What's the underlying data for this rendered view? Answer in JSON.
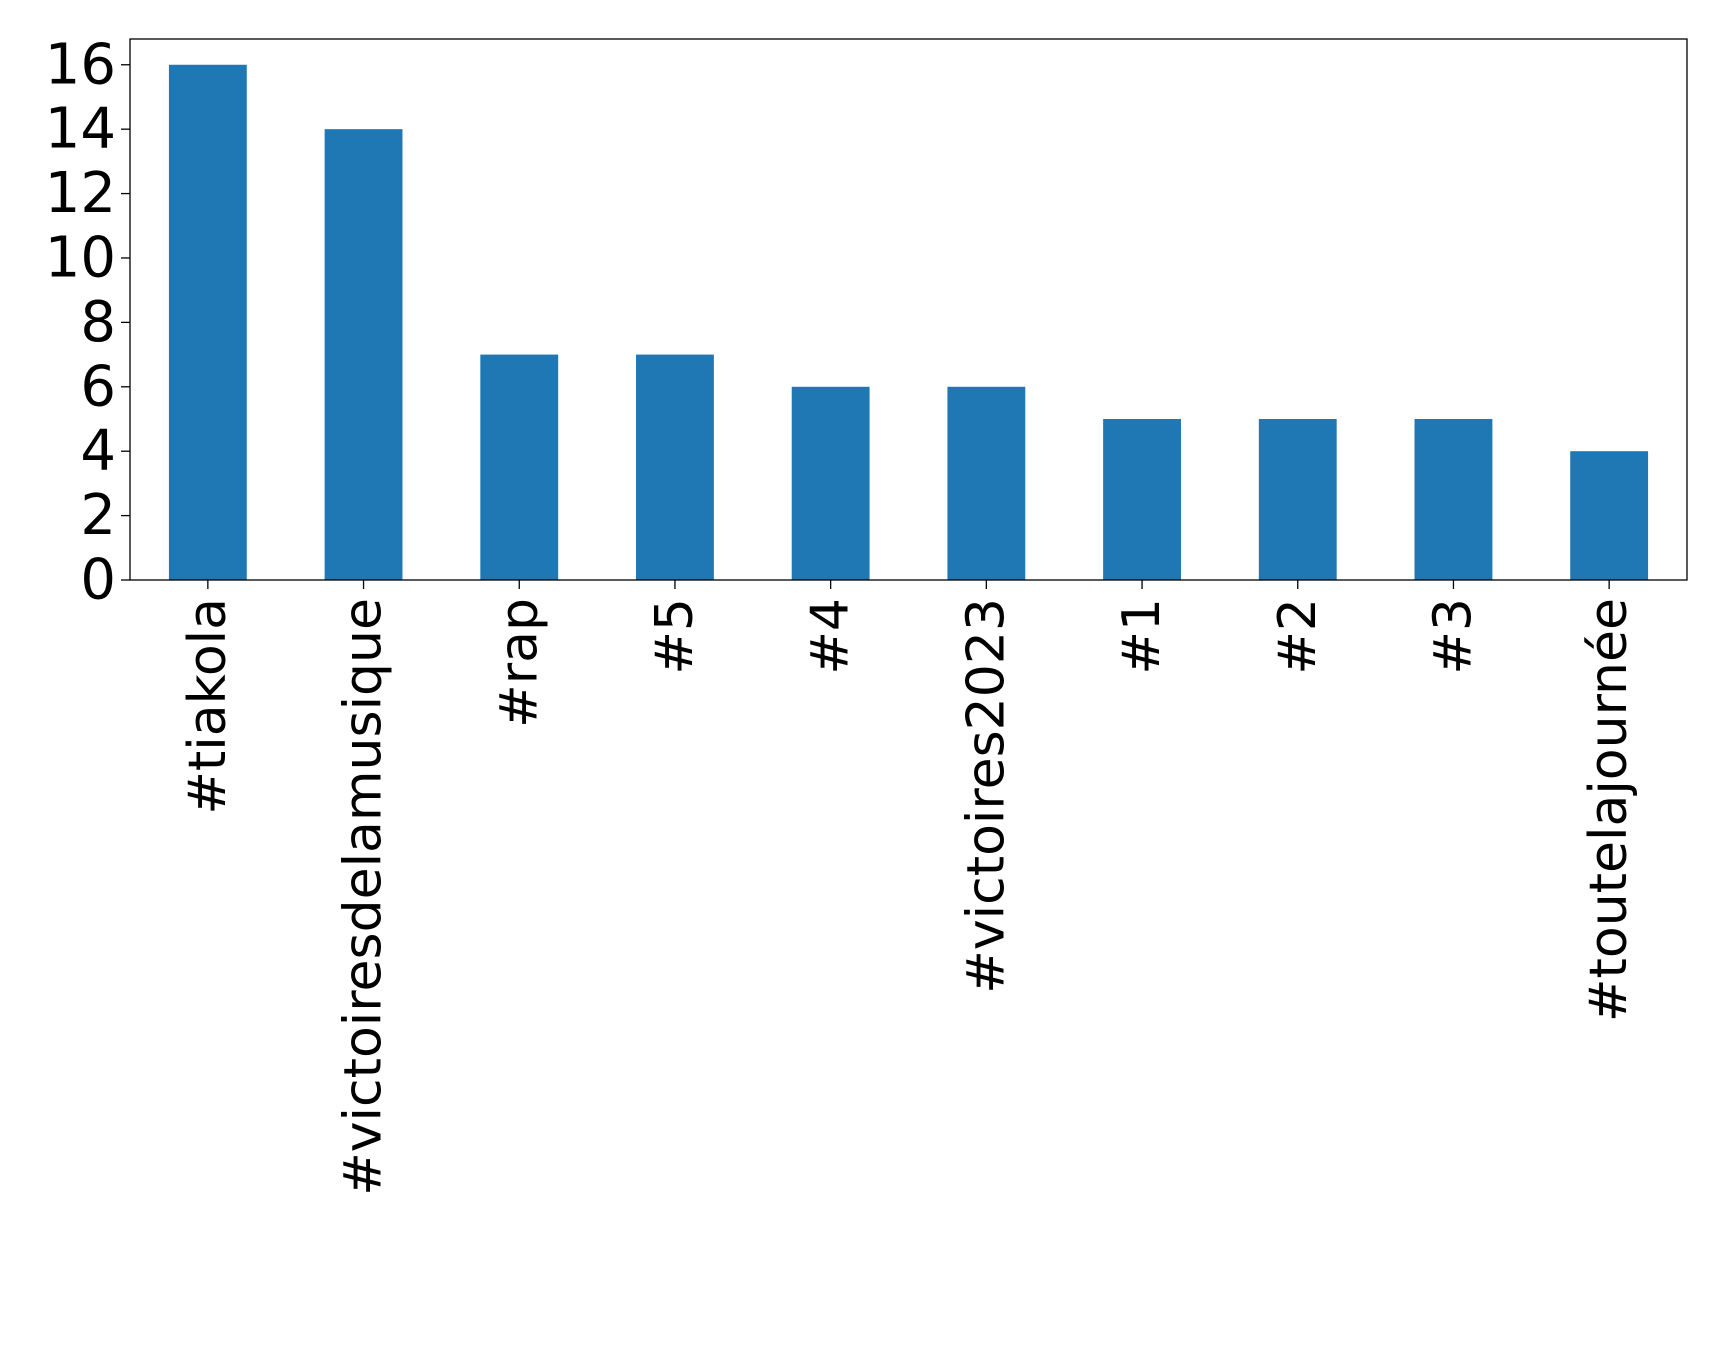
{
  "chart_data": {
    "type": "bar",
    "title": "",
    "xlabel": "",
    "ylabel": "",
    "categories": [
      "#tiakola",
      "#victoiresdelamusique",
      "#rap",
      "#5",
      "#4",
      "#victoires2023",
      "#1",
      "#2",
      "#3",
      "#toutelajournée"
    ],
    "values": [
      16,
      14,
      7,
      7,
      6,
      6,
      5,
      5,
      5,
      4
    ],
    "ylim": [
      0,
      16.8
    ],
    "yticks": [
      0,
      2,
      4,
      6,
      8,
      10,
      12,
      14,
      16
    ],
    "grid": false,
    "legend": "none",
    "bar_color": "#1f77b4"
  }
}
